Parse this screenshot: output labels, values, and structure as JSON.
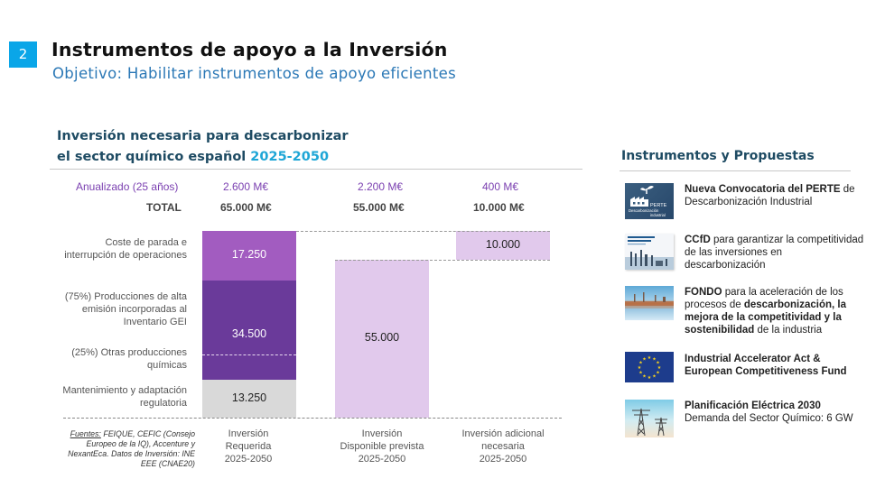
{
  "slide": {
    "number": "2",
    "title": "Instrumentos de apoyo a la Inversión",
    "subtitle": "Objetivo: Habilitar instrumentos de apoyo eficientes"
  },
  "chart_section": {
    "title_line1": "Inversión necesaria para descarbonizar",
    "title_line2_prefix": "el sector químico español ",
    "title_line2_highlight": "2025-2050",
    "annualized_label": "Anualizado (25 años)",
    "total_label": "TOTAL",
    "row_labels": [
      "Coste de parada e interrupción de operaciones",
      "(75%) Producciones de alta emisión incorporadas al Inventario GEI",
      "(25%) Otras producciones químicas",
      "Mantenimiento y adaptación regulatoria"
    ],
    "sources_prefix": "Fuentes:",
    "sources_text": " FEIQUE, CEFIC (Consejo Europeo de la IQ), Accenture y NexantEca. Datos de Inversión: INE EEE (CNAE20)"
  },
  "chart_data": {
    "type": "bar",
    "subtype": "waterfall-stacked",
    "title": "Inversión necesaria para descarbonizar el sector químico español 2025-2050",
    "unit": "M€",
    "categories": [
      "Inversión Requerida 2025-2050",
      "Inversión Disponible prevista 2025-2050",
      "Inversión adicional necesaria 2025-2050"
    ],
    "category_labels": [
      [
        "Inversión",
        "Requerida",
        "2025-2050"
      ],
      [
        "Inversión",
        "Disponible prevista",
        "2025-2050"
      ],
      [
        "Inversión adicional",
        "necesaria",
        "2025-2050"
      ]
    ],
    "annualized": [
      "2.600 M€",
      "2.200 M€",
      "400 M€"
    ],
    "totals": [
      "65.000 M€",
      "55.000 M€",
      "10.000 M€"
    ],
    "ylim": [
      0,
      65000
    ],
    "bars": [
      {
        "category": "Inversión Requerida 2025-2050",
        "segments": [
          {
            "name": "Mantenimiento y adaptación regulatoria",
            "value": 13250,
            "label": "13.250",
            "color": "#d9d9d9",
            "text_color": "#222222"
          },
          {
            "name": "Producciones químicas (75% alta emisión GEI + 25% otras)",
            "value": 34500,
            "label": "34.500",
            "color": "#6a3a9a",
            "text_color": "#ffffff",
            "split_fraction": 0.75
          },
          {
            "name": "Coste de parada e interrupción de operaciones",
            "value": 17250,
            "label": "17.250",
            "color": "#a25cc0",
            "text_color": "#ffffff"
          }
        ]
      },
      {
        "category": "Inversión Disponible prevista 2025-2050",
        "segments": [
          {
            "name": "Inversión disponible",
            "value": 55000,
            "label": "55.000",
            "color": "#e1c9ec",
            "text_color": "#222222"
          }
        ]
      },
      {
        "category": "Inversión adicional necesaria 2025-2050",
        "base": 55000,
        "segments": [
          {
            "name": "Inversión adicional",
            "value": 10000,
            "label": "10.000",
            "color": "#e1c9ec",
            "text_color": "#222222"
          }
        ]
      }
    ],
    "grid": false
  },
  "instruments": {
    "header": "Instrumentos y Propuestas",
    "items": [
      {
        "icon": "perte-logo-icon",
        "thumb_caption": "PERTE",
        "thumb_caption2": "Descarbonización industrial",
        "bold": "Nueva Convocatoria del PERTE",
        "rest": " de Descarbonización Industrial"
      },
      {
        "icon": "ccfd-document-icon",
        "bold": "CCfD",
        "rest": " para garantizar la competitividad de las inversiones en descarbonización"
      },
      {
        "icon": "industrial-plant-icon",
        "bold": "FONDO",
        "rest1": " para la aceleración de los procesos de ",
        "bold2": "descarbonización, la mejora de la competitividad y la sostenibilidad",
        "rest2": " de la industria"
      },
      {
        "icon": "eu-flag-icon",
        "bold": "Industrial Accelerator Act & European Competitiveness Fund",
        "rest": ""
      },
      {
        "icon": "power-pylon-icon",
        "bold": "Planificación Eléctrica 2030",
        "rest": "Demanda del Sector Químico: 6 GW"
      }
    ]
  }
}
